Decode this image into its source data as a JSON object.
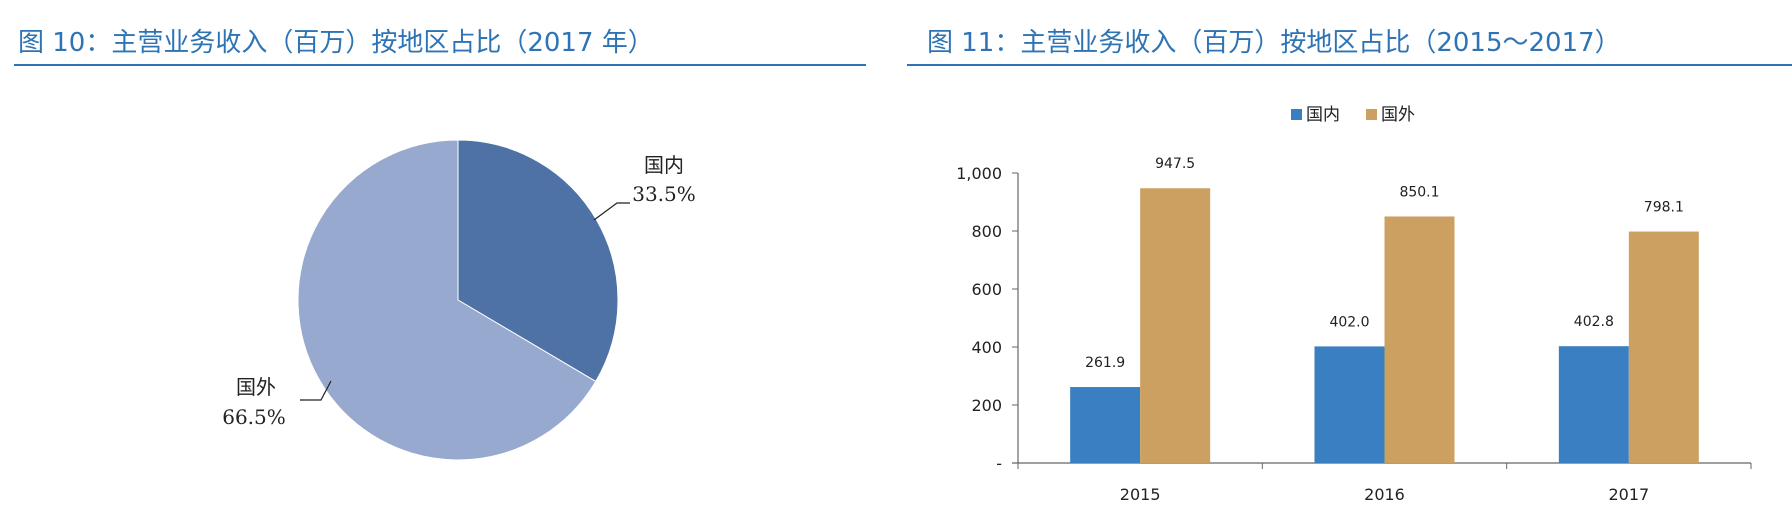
{
  "figures": {
    "left_title": "图 10：主营业务收入（百万）按地区占比（2017 年）",
    "right_title": "图 11：主营业务收入（百万）按地区占比（2015～2017）"
  },
  "colors": {
    "title": "#2e74b5",
    "pie_domestic": "#4f72a6",
    "pie_foreign": "#97a9ce",
    "bar_domestic": "#3a7fc1",
    "bar_foreign": "#cca060"
  },
  "chart_data": [
    {
      "type": "pie",
      "title": "图 10：主营业务收入（百万）按地区占比（2017 年）",
      "slices": [
        {
          "label": "国内",
          "value": 33.5,
          "display": "33.5%"
        },
        {
          "label": "国外",
          "value": 66.5,
          "display": "66.5%"
        }
      ]
    },
    {
      "type": "bar",
      "title": "图 11：主营业务收入（百万）按地区占比（2015～2017）",
      "categories": [
        "2015",
        "2016",
        "2017"
      ],
      "series": [
        {
          "name": "国内",
          "values": [
            261.9,
            402.0,
            402.8
          ],
          "labels": [
            "261.9",
            "402.0",
            "402.8"
          ]
        },
        {
          "name": "国外",
          "values": [
            947.5,
            850.1,
            798.1
          ],
          "labels": [
            "947.5",
            "850.1",
            "798.1"
          ]
        }
      ],
      "ylim": [
        0,
        1000
      ],
      "yticks": [
        0,
        200,
        400,
        600,
        800,
        1000
      ],
      "ytick_labels": [
        "-",
        "200",
        "400",
        "600",
        "800",
        "1,000"
      ],
      "legend_position": "top-center",
      "grid": false
    }
  ]
}
